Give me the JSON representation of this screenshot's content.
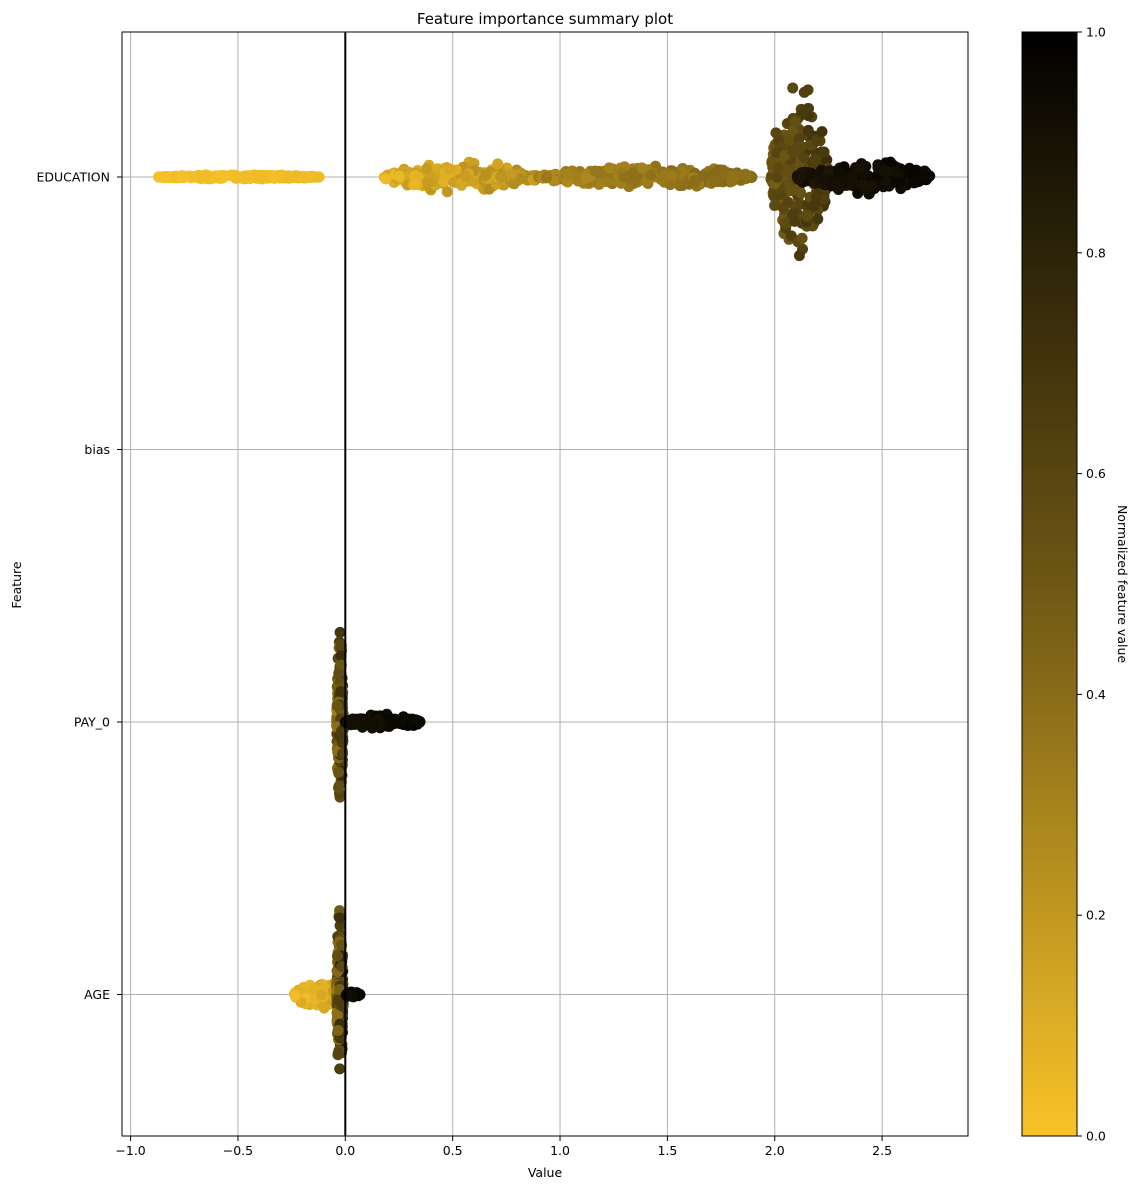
{
  "chart_data": {
    "type": "scatter",
    "title": "Feature importance summary plot",
    "xlabel": "Value",
    "ylabel": "Feature",
    "xlim": [
      -1.04,
      2.9
    ],
    "x_ticks": [
      -1.0,
      -0.5,
      0.0,
      0.5,
      1.0,
      1.5,
      2.0,
      2.5
    ],
    "x_tick_labels": [
      "−1.0",
      "−0.5",
      "0.0",
      "0.5",
      "1.0",
      "1.5",
      "2.0",
      "2.5"
    ],
    "features": [
      "EDUCATION",
      "bias",
      "PAY_0",
      "AGE"
    ],
    "grid": true,
    "zero_line": 0,
    "colorbar": {
      "label": "Normalized feature value",
      "range": [
        0,
        1
      ],
      "ticks": [
        0.0,
        0.2,
        0.4,
        0.6,
        0.8,
        1.0
      ],
      "tick_labels": [
        "0.0",
        "0.2",
        "0.4",
        "0.6",
        "0.8",
        "1.0"
      ],
      "colors": [
        "#f9c328",
        "#6e5715",
        "#000000"
      ]
    },
    "series": [
      {
        "feature": "EDUCATION",
        "segments": [
          {
            "x_range": [
              -0.87,
              -0.12
            ],
            "max_spread": 0.02,
            "value_range": [
              0.0,
              0.05
            ]
          },
          {
            "x_range": [
              0.18,
              0.9
            ],
            "max_spread": 0.12,
            "value_range": [
              0.02,
              0.3
            ]
          },
          {
            "x_range": [
              0.9,
              1.9
            ],
            "max_spread": 0.09,
            "value_range": [
              0.25,
              0.45
            ]
          },
          {
            "x_range": [
              1.98,
              2.25
            ],
            "max_spread": 0.72,
            "value_range": [
              0.45,
              0.75
            ]
          },
          {
            "x_range": [
              2.1,
              2.73
            ],
            "max_spread": 0.14,
            "value_range": [
              0.85,
              1.0
            ]
          }
        ]
      },
      {
        "feature": "bias",
        "segments": []
      },
      {
        "feature": "PAY_0",
        "segments": [
          {
            "x_range": [
              -0.04,
              -0.01
            ],
            "max_spread": 0.72,
            "value_range": [
              0.3,
              0.85
            ]
          },
          {
            "x_range": [
              0.0,
              0.35
            ],
            "max_spread": 0.06,
            "value_range": [
              0.88,
              1.0
            ]
          }
        ]
      },
      {
        "feature": "AGE",
        "segments": [
          {
            "x_range": [
              -0.24,
              -0.01
            ],
            "max_spread": 0.12,
            "value_range": [
              0.0,
              0.2
            ]
          },
          {
            "x_range": [
              -0.04,
              -0.01
            ],
            "max_spread": 0.72,
            "value_range": [
              0.3,
              0.9
            ]
          },
          {
            "x_range": [
              0.0,
              0.07
            ],
            "max_spread": 0.03,
            "value_range": [
              0.9,
              1.0
            ]
          }
        ]
      }
    ]
  }
}
